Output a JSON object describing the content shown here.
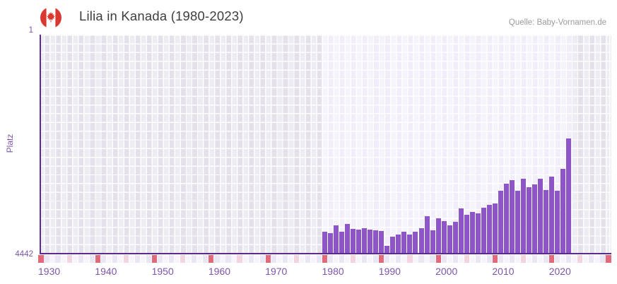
{
  "header": {
    "title": "Lilia in Kanada (1980-2023)",
    "source": "Quelle: Baby-Vornamen.de",
    "flag_icon": "canada-flag-icon"
  },
  "y_axis": {
    "label": "Platz",
    "top_tick": "1",
    "bottom_tick": "4442"
  },
  "colors": {
    "bar": "#8e55c7",
    "axis_line": "#5a2c8c",
    "tick_text": "#7d55ae",
    "title_text": "#3e3e3e",
    "source_text": "#9b9b9b",
    "plot_background": "#e4e1eb",
    "data_band_background": "#f1edf9",
    "decade_marker": "#e0697a",
    "half_decade_marker": "#f3d5de",
    "strip_odd": "#ebe6f3",
    "strip_even": "#f7f4fb",
    "flag_red": "#d93831"
  },
  "chart_data": {
    "type": "bar",
    "title": "Lilia in Kanada (1980-2023)",
    "ylabel": "Platz",
    "y_inverted": true,
    "ylim": [
      1,
      4442
    ],
    "x_domain": [
      1930,
      2030
    ],
    "x_ticks": [
      1930,
      1940,
      1950,
      1960,
      1970,
      1980,
      1990,
      2000,
      2010,
      2020
    ],
    "highlight_band_years": [
      1980,
      2023
    ],
    "grid": true,
    "legend": "none",
    "years": [
      1980,
      1981,
      1982,
      1983,
      1984,
      1985,
      1986,
      1987,
      1988,
      1989,
      1990,
      1991,
      1992,
      1993,
      1994,
      1995,
      1996,
      1997,
      1998,
      1999,
      2000,
      2001,
      2002,
      2003,
      2004,
      2005,
      2006,
      2007,
      2008,
      2009,
      2010,
      2011,
      2012,
      2013,
      2014,
      2015,
      2016,
      2017,
      2018,
      2019,
      2020,
      2021,
      2022,
      2023
    ],
    "values": [
      4005,
      4040,
      3885,
      4010,
      3850,
      3960,
      3970,
      3945,
      3965,
      3980,
      3995,
      4300,
      4110,
      4065,
      4010,
      4065,
      4010,
      3945,
      3700,
      3985,
      3740,
      3800,
      3875,
      3810,
      3540,
      3670,
      3610,
      3635,
      3515,
      3465,
      3435,
      3180,
      3040,
      2960,
      3180,
      2935,
      3100,
      3050,
      2940,
      3165,
      2895,
      3175,
      2725,
      2115
    ]
  }
}
